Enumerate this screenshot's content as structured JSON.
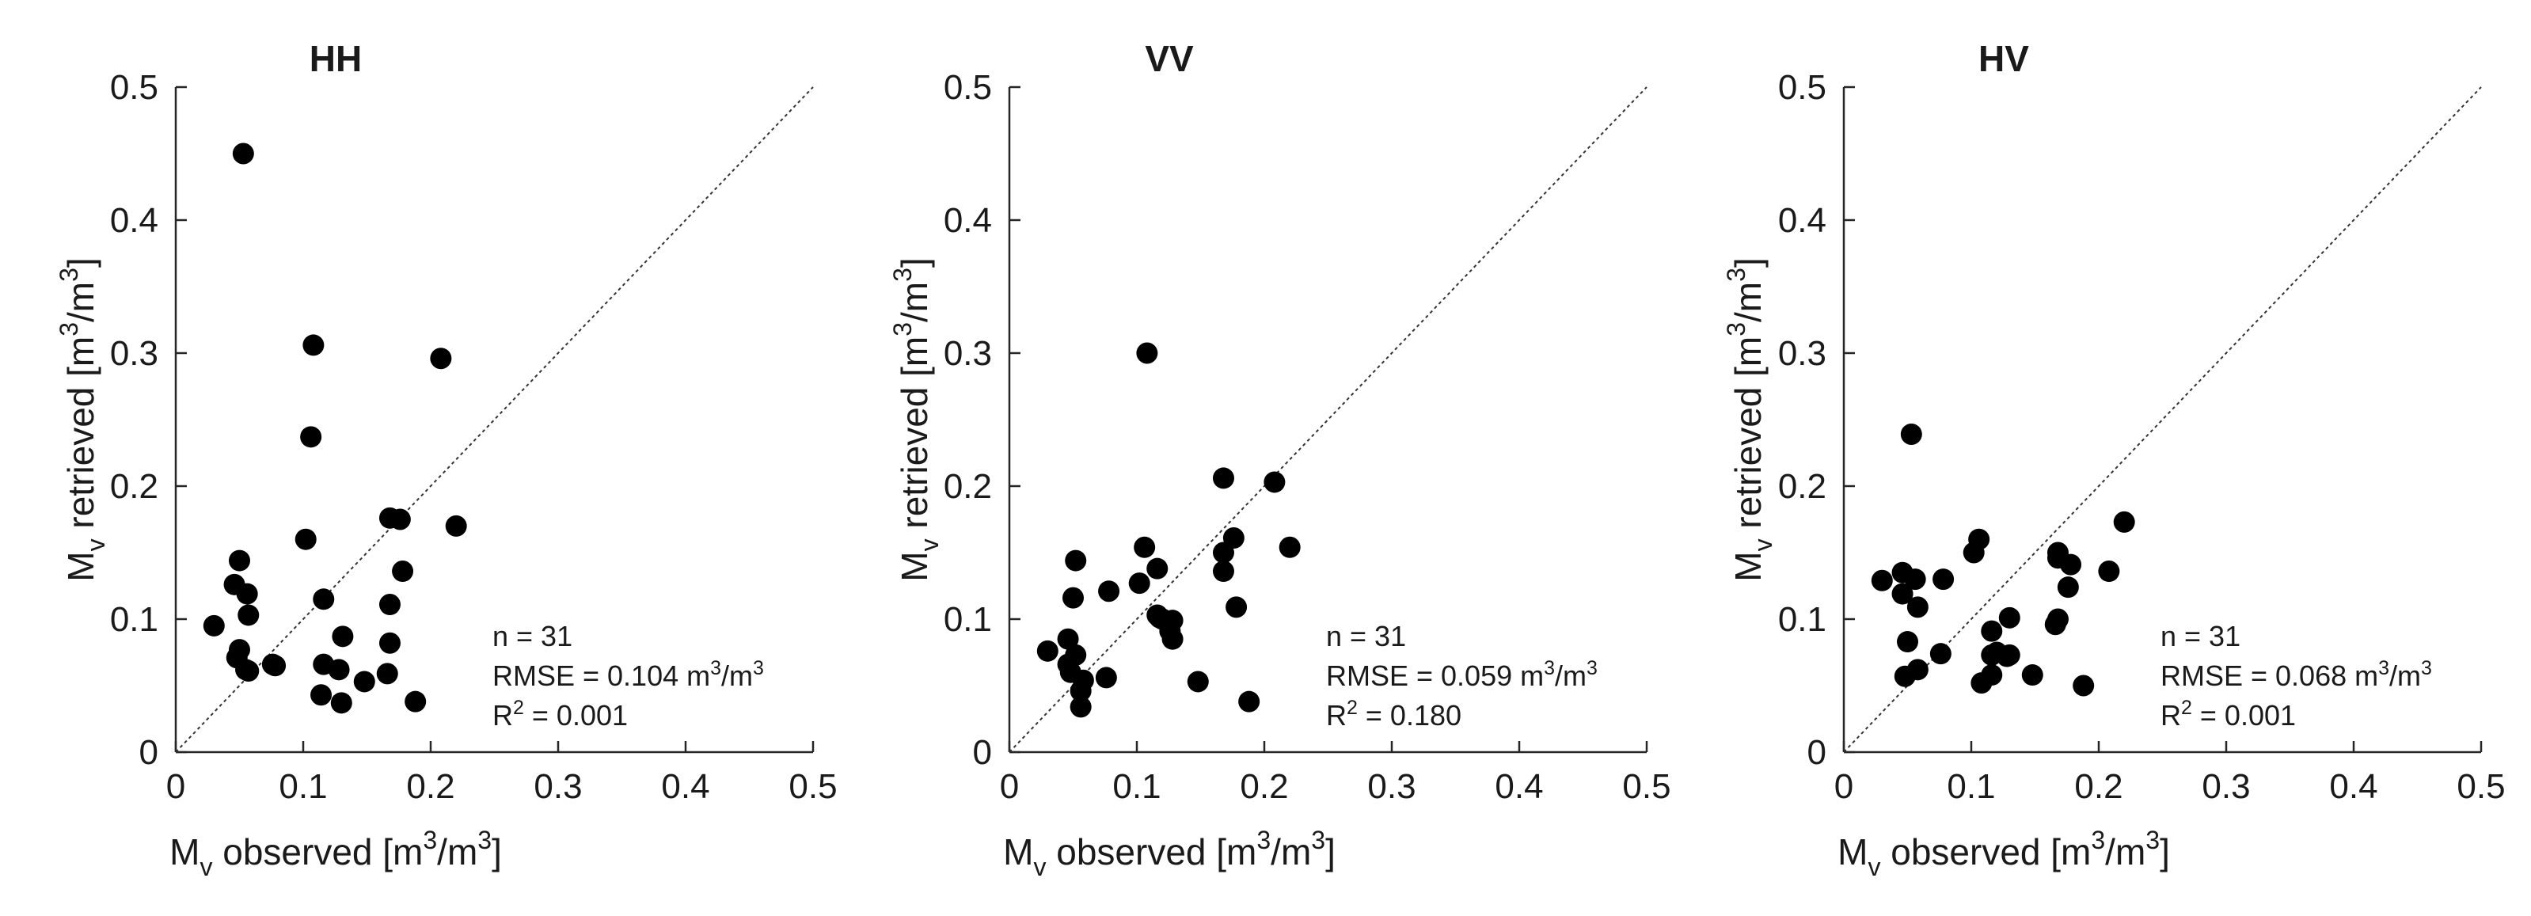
{
  "chart_data": [
    {
      "type": "scatter",
      "title": "HH",
      "xlabel": {
        "main": "M",
        "sub": "v",
        "pre": " observed [m",
        "sup": "3",
        "post": "/m",
        "sup2": "3",
        "end": "]"
      },
      "ylabel": {
        "main": "M",
        "sub": "v",
        "pre": " retrieved [m",
        "sup": "3",
        "post": "/m",
        "sup2": "3",
        "end": "]"
      },
      "xlim": [
        0,
        0.5
      ],
      "ylim": [
        0,
        0.5
      ],
      "ticks": [
        "0",
        "0.1",
        "0.2",
        "0.3",
        "0.4",
        "0.5"
      ],
      "one_to_one_line": true,
      "stats": {
        "n": "n = 31",
        "rmse": "RMSE = 0.104 m",
        "rmse_sup": "3",
        "rmse_mid": "/m",
        "rmse_sup2": "3",
        "r2_pre": "R",
        "r2_sup": "2",
        "r2_post": " = 0.001"
      },
      "points": [
        [
          0.053,
          0.45
        ],
        [
          0.108,
          0.306
        ],
        [
          0.208,
          0.296
        ],
        [
          0.106,
          0.237
        ],
        [
          0.102,
          0.16
        ],
        [
          0.168,
          0.176
        ],
        [
          0.176,
          0.175
        ],
        [
          0.22,
          0.17
        ],
        [
          0.05,
          0.144
        ],
        [
          0.178,
          0.136
        ],
        [
          0.046,
          0.126
        ],
        [
          0.056,
          0.119
        ],
        [
          0.116,
          0.115
        ],
        [
          0.168,
          0.111
        ],
        [
          0.057,
          0.103
        ],
        [
          0.03,
          0.095
        ],
        [
          0.131,
          0.087
        ],
        [
          0.168,
          0.082
        ],
        [
          0.05,
          0.077
        ],
        [
          0.048,
          0.071
        ],
        [
          0.076,
          0.066
        ],
        [
          0.078,
          0.065
        ],
        [
          0.116,
          0.066
        ],
        [
          0.128,
          0.062
        ],
        [
          0.057,
          0.061
        ],
        [
          0.166,
          0.059
        ],
        [
          0.148,
          0.053
        ],
        [
          0.114,
          0.043
        ],
        [
          0.13,
          0.037
        ],
        [
          0.188,
          0.038
        ],
        [
          0.055,
          0.062
        ]
      ]
    },
    {
      "type": "scatter",
      "title": "VV",
      "xlabel": {
        "main": "M",
        "sub": "v",
        "pre": " observed [m",
        "sup": "3",
        "post": "/m",
        "sup2": "3",
        "end": "]"
      },
      "ylabel": {
        "main": "M",
        "sub": "v",
        "pre": " retrieved [m",
        "sup": "3",
        "post": "/m",
        "sup2": "3",
        "end": "]"
      },
      "xlim": [
        0,
        0.5
      ],
      "ylim": [
        0,
        0.5
      ],
      "ticks": [
        "0",
        "0.1",
        "0.2",
        "0.3",
        "0.4",
        "0.5"
      ],
      "one_to_one_line": true,
      "stats": {
        "n": "n = 31",
        "rmse": "RMSE = 0.059 m",
        "rmse_sup": "3",
        "rmse_mid": "/m",
        "rmse_sup2": "3",
        "r2_pre": "R",
        "r2_sup": "2",
        "r2_post": " = 0.180"
      },
      "points": [
        [
          0.108,
          0.3
        ],
        [
          0.168,
          0.206
        ],
        [
          0.208,
          0.203
        ],
        [
          0.176,
          0.161
        ],
        [
          0.106,
          0.154
        ],
        [
          0.22,
          0.154
        ],
        [
          0.168,
          0.15
        ],
        [
          0.052,
          0.144
        ],
        [
          0.116,
          0.138
        ],
        [
          0.168,
          0.136
        ],
        [
          0.102,
          0.127
        ],
        [
          0.078,
          0.121
        ],
        [
          0.05,
          0.116
        ],
        [
          0.178,
          0.109
        ],
        [
          0.116,
          0.103
        ],
        [
          0.118,
          0.101
        ],
        [
          0.128,
          0.099
        ],
        [
          0.126,
          0.091
        ],
        [
          0.128,
          0.085
        ],
        [
          0.046,
          0.085
        ],
        [
          0.03,
          0.076
        ],
        [
          0.052,
          0.073
        ],
        [
          0.046,
          0.066
        ],
        [
          0.048,
          0.06
        ],
        [
          0.076,
          0.056
        ],
        [
          0.058,
          0.054
        ],
        [
          0.148,
          0.053
        ],
        [
          0.056,
          0.046
        ],
        [
          0.188,
          0.038
        ],
        [
          0.056,
          0.034
        ],
        [
          0.12,
          0.1
        ]
      ]
    },
    {
      "type": "scatter",
      "title": "HV",
      "xlabel": {
        "main": "M",
        "sub": "v",
        "pre": " observed [m",
        "sup": "3",
        "post": "/m",
        "sup2": "3",
        "end": "]"
      },
      "ylabel": {
        "main": "M",
        "sub": "v",
        "pre": " retrieved [m",
        "sup": "3",
        "post": "/m",
        "sup2": "3",
        "end": "]"
      },
      "xlim": [
        0,
        0.5
      ],
      "ylim": [
        0,
        0.5
      ],
      "ticks": [
        "0",
        "0.1",
        "0.2",
        "0.3",
        "0.4",
        "0.5"
      ],
      "one_to_one_line": true,
      "stats": {
        "n": "n = 31",
        "rmse": "RMSE = 0.068 m",
        "rmse_sup": "3",
        "rmse_mid": "/m",
        "rmse_sup2": "3",
        "r2_pre": "R",
        "r2_sup": "2",
        "r2_post": " = 0.001"
      },
      "points": [
        [
          0.053,
          0.239
        ],
        [
          0.22,
          0.173
        ],
        [
          0.106,
          0.16
        ],
        [
          0.102,
          0.15
        ],
        [
          0.168,
          0.15
        ],
        [
          0.168,
          0.146
        ],
        [
          0.178,
          0.141
        ],
        [
          0.208,
          0.136
        ],
        [
          0.046,
          0.135
        ],
        [
          0.056,
          0.13
        ],
        [
          0.03,
          0.129
        ],
        [
          0.078,
          0.13
        ],
        [
          0.176,
          0.124
        ],
        [
          0.046,
          0.119
        ],
        [
          0.058,
          0.109
        ],
        [
          0.13,
          0.101
        ],
        [
          0.168,
          0.1
        ],
        [
          0.166,
          0.096
        ],
        [
          0.116,
          0.091
        ],
        [
          0.05,
          0.083
        ],
        [
          0.076,
          0.074
        ],
        [
          0.116,
          0.073
        ],
        [
          0.128,
          0.072
        ],
        [
          0.13,
          0.073
        ],
        [
          0.058,
          0.062
        ],
        [
          0.116,
          0.058
        ],
        [
          0.148,
          0.058
        ],
        [
          0.048,
          0.057
        ],
        [
          0.108,
          0.052
        ],
        [
          0.188,
          0.05
        ],
        [
          0.12,
          0.075
        ]
      ]
    }
  ]
}
